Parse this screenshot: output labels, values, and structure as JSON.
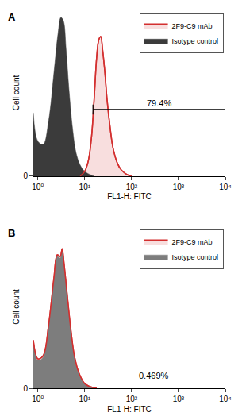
{
  "chart_data": [
    {
      "type": "area",
      "title": "A",
      "x_label": "FL1-H: FITC",
      "y_label": "Cell count",
      "log": "x",
      "xlim": [
        0.8,
        10000
      ],
      "xticks": [
        {
          "value": 1,
          "label": "10⁰"
        },
        {
          "value": 10,
          "label": "10¹"
        },
        {
          "value": 100,
          "label": "10²"
        },
        {
          "value": 1000,
          "label": "10³"
        },
        {
          "value": 10000,
          "label": "10⁴"
        }
      ],
      "ylim": [
        0,
        105
      ],
      "yticks": [
        0
      ],
      "legend": "upper right",
      "gate": [
        15,
        10000
      ],
      "gate_label": "79.4%",
      "series": [
        {
          "name": "2F9-C9 mAb",
          "color": "#d32f2f",
          "line_style": "outline",
          "x": [
            8,
            10,
            12,
            14,
            16,
            18,
            20,
            22,
            24,
            27,
            30,
            35,
            40,
            50,
            60,
            80,
            100
          ],
          "values": [
            0,
            3,
            10,
            25,
            50,
            75,
            86,
            88,
            80,
            65,
            48,
            30,
            18,
            8,
            4,
            1,
            0
          ]
        },
        {
          "name": "Isotype control",
          "color": "#3b3b3b",
          "line_style": "solid",
          "x": [
            0.8,
            1.0,
            1.3,
            1.7,
            2.2,
            2.7,
            3.1,
            3.5,
            4.0,
            4.6,
            5.5,
            6.5,
            8,
            10,
            13,
            16
          ],
          "values": [
            40,
            22,
            20,
            35,
            65,
            90,
            100,
            98,
            80,
            55,
            30,
            15,
            7,
            3,
            1,
            0
          ]
        }
      ]
    },
    {
      "type": "area",
      "title": "B",
      "x_label": "FL1-H: FITC",
      "y_label": "Cell count",
      "log": "x",
      "xlim": [
        0.8,
        10000
      ],
      "xticks": [
        {
          "value": 1,
          "label": "10⁰"
        },
        {
          "value": 10,
          "label": "10¹"
        },
        {
          "value": 100,
          "label": "10²"
        },
        {
          "value": 1000,
          "label": "10³"
        },
        {
          "value": 10000,
          "label": "10⁴"
        }
      ],
      "ylim": [
        0,
        105
      ],
      "yticks": [
        0
      ],
      "legend": "upper right",
      "gate_label": "0.469%",
      "series": [
        {
          "name": "2F9-C9 mAb",
          "color": "#d32f2f",
          "line_style": "outline",
          "x": [
            0.8,
            1.0,
            1.3,
            1.7,
            2.2,
            2.6,
            3.0,
            3.3,
            3.6,
            4.2,
            5,
            6,
            7.5,
            10,
            13,
            18
          ],
          "values": [
            31,
            19,
            21,
            41,
            71,
            86,
            85,
            90,
            81,
            61,
            39,
            21,
            10,
            3,
            1,
            0
          ]
        },
        {
          "name": "Isotype control",
          "color": "#7d7d7d",
          "line_style": "solid",
          "x": [
            0.8,
            1.0,
            1.3,
            1.7,
            2.2,
            2.6,
            3.0,
            3.3,
            3.6,
            4.2,
            5,
            6,
            7.5,
            10,
            13,
            18
          ],
          "values": [
            30,
            18,
            20,
            40,
            70,
            85,
            84,
            88,
            80,
            60,
            38,
            20,
            9,
            3,
            1,
            0
          ]
        }
      ]
    }
  ]
}
